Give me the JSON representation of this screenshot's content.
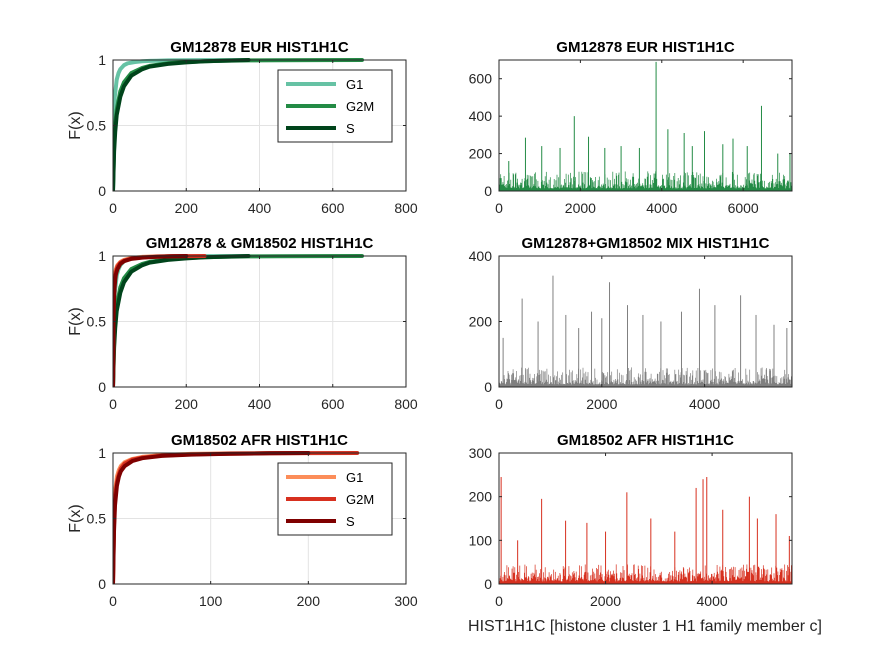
{
  "figure_xlabel": "HIST1H1C [histone cluster 1 H1 family member c]",
  "chart_data": [
    {
      "type": "line",
      "title": "GM12878 EUR HIST1H1C",
      "ylabel": "F(x)",
      "xlim": [
        0,
        800
      ],
      "ylim": [
        0,
        1
      ],
      "xticks": [
        0,
        200,
        400,
        600,
        800
      ],
      "yticks": [
        0,
        0.5,
        1
      ],
      "grid": true,
      "legend": "top-right",
      "series": [
        {
          "name": "G1",
          "color": "#66c2a4",
          "x": [
            0,
            2,
            5,
            10,
            15,
            20,
            30,
            40,
            60,
            80,
            100,
            120,
            150,
            200,
            250,
            300,
            370
          ],
          "y": [
            0,
            0.55,
            0.72,
            0.85,
            0.9,
            0.93,
            0.96,
            0.975,
            0.985,
            0.99,
            0.993,
            0.995,
            0.997,
            0.998,
            0.999,
            0.9995,
            1
          ]
        },
        {
          "name": "G2M",
          "color": "#238b45",
          "x": [
            0,
            3,
            6,
            10,
            20,
            30,
            50,
            80,
            100,
            150,
            200,
            250,
            300,
            370,
            450,
            550,
            680
          ],
          "y": [
            0,
            0.35,
            0.5,
            0.62,
            0.76,
            0.83,
            0.9,
            0.94,
            0.955,
            0.975,
            0.985,
            0.99,
            0.994,
            0.997,
            0.998,
            0.999,
            1
          ]
        },
        {
          "name": "S",
          "color": "#00441b",
          "x": [
            0,
            3,
            6,
            10,
            20,
            30,
            50,
            80,
            100,
            150,
            200,
            250,
            300,
            370
          ],
          "y": [
            0,
            0.3,
            0.45,
            0.58,
            0.72,
            0.8,
            0.88,
            0.93,
            0.95,
            0.97,
            0.982,
            0.99,
            0.995,
            1
          ]
        }
      ]
    },
    {
      "type": "bar",
      "title": "GM12878 EUR HIST1H1C",
      "xlim": [
        0,
        7200
      ],
      "ylim": [
        0,
        700
      ],
      "xticks": [
        0,
        2000,
        4000,
        6000
      ],
      "yticks": [
        0,
        200,
        400,
        600
      ],
      "color": "#238b45",
      "n_cells": 7200,
      "spikes": [
        [
          240,
          160
        ],
        [
          650,
          285
        ],
        [
          1050,
          240
        ],
        [
          1500,
          230
        ],
        [
          1850,
          400
        ],
        [
          2200,
          290
        ],
        [
          2600,
          230
        ],
        [
          3000,
          240
        ],
        [
          3450,
          230
        ],
        [
          3860,
          690
        ],
        [
          4150,
          330
        ],
        [
          4550,
          310
        ],
        [
          4750,
          240
        ],
        [
          5050,
          320
        ],
        [
          5500,
          250
        ],
        [
          5750,
          280
        ],
        [
          6100,
          240
        ],
        [
          6450,
          455
        ],
        [
          6850,
          200
        ],
        [
          7150,
          200
        ]
      ]
    },
    {
      "type": "line",
      "title": "GM12878 & GM18502 HIST1H1C",
      "ylabel": "F(x)",
      "xlim": [
        0,
        800
      ],
      "ylim": [
        0,
        1
      ],
      "xticks": [
        0,
        200,
        400,
        600,
        800
      ],
      "yticks": [
        0,
        0.5,
        1
      ],
      "grid": true,
      "series": [
        {
          "name": "G1",
          "color": "#66c2a4",
          "x": [
            0,
            2,
            5,
            10,
            15,
            20,
            30,
            40,
            60,
            80,
            100,
            120,
            150,
            200,
            250,
            300,
            370
          ],
          "y": [
            0,
            0.55,
            0.72,
            0.85,
            0.9,
            0.93,
            0.96,
            0.975,
            0.985,
            0.99,
            0.993,
            0.995,
            0.997,
            0.998,
            0.999,
            0.9995,
            1
          ]
        },
        {
          "name": "G2M",
          "color": "#238b45",
          "x": [
            0,
            3,
            6,
            10,
            20,
            30,
            50,
            80,
            100,
            150,
            200,
            250,
            300,
            370,
            450,
            550,
            680
          ],
          "y": [
            0,
            0.35,
            0.5,
            0.62,
            0.76,
            0.83,
            0.9,
            0.94,
            0.955,
            0.975,
            0.985,
            0.99,
            0.994,
            0.997,
            0.998,
            0.999,
            1
          ]
        },
        {
          "name": "S",
          "color": "#00441b",
          "x": [
            0,
            3,
            6,
            10,
            20,
            30,
            50,
            80,
            100,
            150,
            200,
            250,
            300,
            370
          ],
          "y": [
            0,
            0.3,
            0.45,
            0.58,
            0.72,
            0.8,
            0.88,
            0.93,
            0.95,
            0.97,
            0.982,
            0.99,
            0.995,
            1
          ]
        },
        {
          "name": "G1",
          "color": "#fc8d59",
          "x": [
            0,
            1,
            2,
            4,
            6,
            8,
            12,
            20,
            30,
            50,
            80,
            120,
            160,
            200
          ],
          "y": [
            0,
            0.5,
            0.7,
            0.82,
            0.87,
            0.9,
            0.93,
            0.955,
            0.97,
            0.985,
            0.993,
            0.997,
            0.999,
            1
          ]
        },
        {
          "name": "G2M",
          "color": "#d7301f",
          "x": [
            0,
            1,
            2,
            4,
            6,
            8,
            12,
            20,
            30,
            50,
            80,
            120,
            160,
            200,
            250
          ],
          "y": [
            0,
            0.45,
            0.65,
            0.78,
            0.84,
            0.88,
            0.92,
            0.95,
            0.965,
            0.98,
            0.99,
            0.995,
            0.998,
            0.999,
            1
          ]
        },
        {
          "name": "S",
          "color": "#7f0000",
          "x": [
            0,
            1,
            2,
            4,
            6,
            8,
            12,
            20,
            30,
            50,
            80,
            120,
            160,
            200
          ],
          "y": [
            0,
            0.4,
            0.6,
            0.75,
            0.82,
            0.86,
            0.9,
            0.94,
            0.96,
            0.978,
            0.988,
            0.994,
            0.998,
            1
          ]
        }
      ]
    },
    {
      "type": "bar",
      "title": "GM12878+GM18502 MIX HIST1H1C",
      "xlim": [
        0,
        5700
      ],
      "ylim": [
        0,
        400
      ],
      "xticks": [
        0,
        2000,
        4000
      ],
      "yticks": [
        0,
        200,
        400
      ],
      "color": "#808080",
      "n_cells": 5700,
      "spikes": [
        [
          80,
          150
        ],
        [
          450,
          270
        ],
        [
          760,
          200
        ],
        [
          1050,
          340
        ],
        [
          1300,
          220
        ],
        [
          1550,
          180
        ],
        [
          1800,
          230
        ],
        [
          2000,
          210
        ],
        [
          2150,
          320
        ],
        [
          2500,
          250
        ],
        [
          2800,
          220
        ],
        [
          3150,
          200
        ],
        [
          3550,
          230
        ],
        [
          3900,
          300
        ],
        [
          4200,
          250
        ],
        [
          4700,
          280
        ],
        [
          5000,
          220
        ],
        [
          5350,
          190
        ],
        [
          5600,
          180
        ]
      ]
    },
    {
      "type": "line",
      "title": "GM18502 AFR HIST1H1C",
      "ylabel": "F(x)",
      "xlim": [
        0,
        300
      ],
      "ylim": [
        0,
        1
      ],
      "xticks": [
        0,
        100,
        200,
        300
      ],
      "yticks": [
        0,
        0.5,
        1
      ],
      "grid": true,
      "legend": "top-right",
      "series": [
        {
          "name": "G1",
          "color": "#fc8d59",
          "x": [
            0,
            1,
            2,
            4,
            6,
            8,
            12,
            20,
            30,
            50,
            80,
            120,
            160,
            200
          ],
          "y": [
            0,
            0.5,
            0.7,
            0.82,
            0.87,
            0.9,
            0.93,
            0.955,
            0.97,
            0.985,
            0.993,
            0.997,
            0.999,
            1
          ]
        },
        {
          "name": "G2M",
          "color": "#d7301f",
          "x": [
            0,
            1,
            2,
            4,
            6,
            8,
            12,
            20,
            30,
            50,
            80,
            120,
            160,
            200,
            250
          ],
          "y": [
            0,
            0.45,
            0.65,
            0.78,
            0.84,
            0.88,
            0.92,
            0.95,
            0.965,
            0.98,
            0.99,
            0.995,
            0.998,
            0.999,
            1
          ]
        },
        {
          "name": "S",
          "color": "#7f0000",
          "x": [
            0,
            1,
            2,
            4,
            6,
            8,
            12,
            20,
            30,
            50,
            80,
            120,
            160,
            200
          ],
          "y": [
            0,
            0.4,
            0.6,
            0.75,
            0.82,
            0.86,
            0.9,
            0.94,
            0.96,
            0.978,
            0.988,
            0.994,
            0.998,
            1
          ]
        }
      ]
    },
    {
      "type": "bar",
      "title": "GM18502 AFR HIST1H1C",
      "xlim": [
        0,
        5500
      ],
      "ylim": [
        0,
        300
      ],
      "xticks": [
        0,
        2000,
        4000
      ],
      "yticks": [
        0,
        100,
        200,
        300
      ],
      "color": "#d7301f",
      "n_cells": 5500,
      "spikes": [
        [
          40,
          245
        ],
        [
          350,
          100
        ],
        [
          800,
          195
        ],
        [
          1250,
          145
        ],
        [
          1650,
          140
        ],
        [
          2000,
          120
        ],
        [
          2400,
          210
        ],
        [
          2850,
          150
        ],
        [
          3300,
          120
        ],
        [
          3700,
          220
        ],
        [
          3830,
          240
        ],
        [
          3900,
          245
        ],
        [
          4200,
          170
        ],
        [
          4700,
          200
        ],
        [
          4850,
          150
        ],
        [
          5200,
          160
        ],
        [
          5450,
          110
        ]
      ]
    }
  ]
}
